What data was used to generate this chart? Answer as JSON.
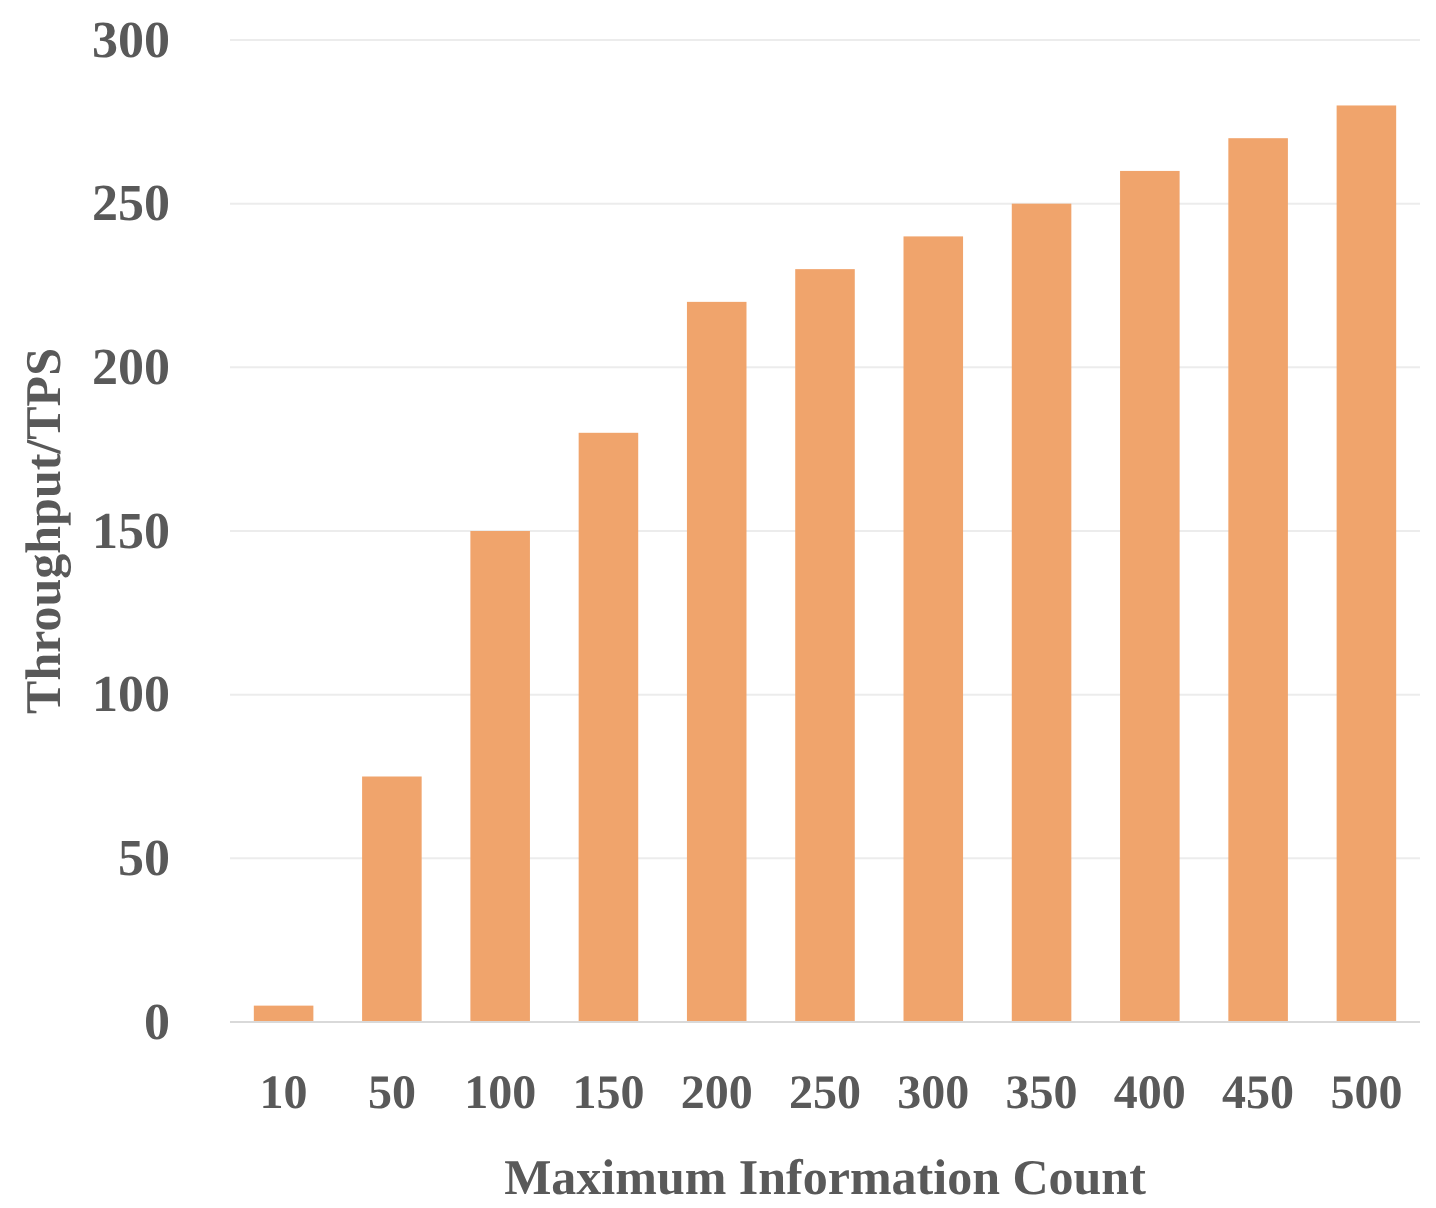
{
  "chart_data": {
    "type": "bar",
    "xlabel": "Maximum Information Count",
    "ylabel": "Throughput/TPS",
    "categories": [
      "10",
      "50",
      "100",
      "150",
      "200",
      "250",
      "300",
      "350",
      "400",
      "450",
      "500"
    ],
    "series": [
      {
        "color": "#f0a46c",
        "values": [
          5,
          75,
          150,
          180,
          220,
          230,
          240,
          250,
          260,
          270,
          280
        ]
      }
    ],
    "ylim": [
      0,
      300
    ],
    "yticks": [
      0,
      50,
      100,
      150,
      200,
      250,
      300
    ],
    "grid": "y"
  }
}
